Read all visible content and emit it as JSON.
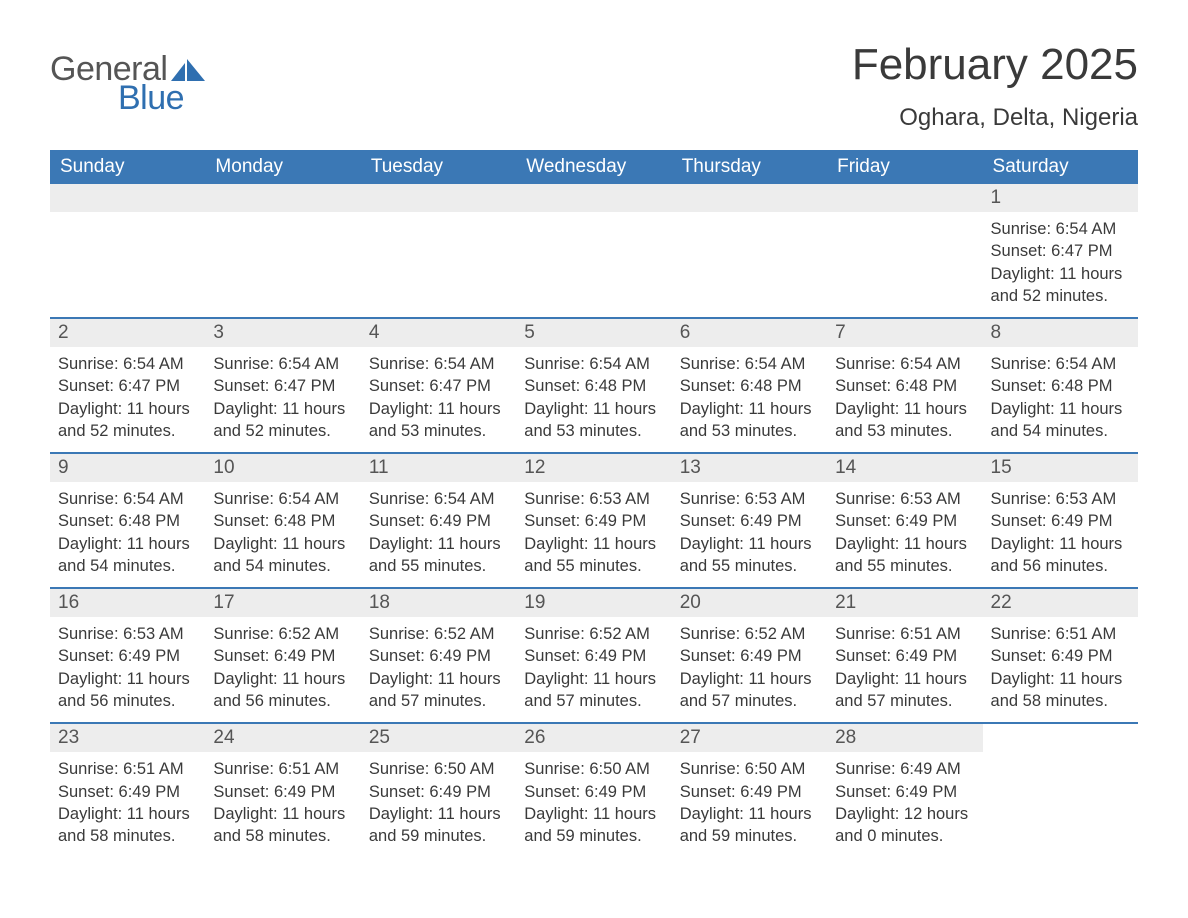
{
  "logo": {
    "text1": "General",
    "text2": "Blue",
    "accent_color": "#2f6fb0"
  },
  "title": "February 2025",
  "location": "Oghara, Delta, Nigeria",
  "colors": {
    "header_bg": "#3b78b5",
    "header_text": "#ffffff",
    "daynum_bg": "#ededed",
    "week_border": "#3b78b5",
    "body_text": "#3a3a3a",
    "background": "#ffffff"
  },
  "fonts": {
    "title_size": 44,
    "location_size": 24,
    "dayhead_size": 19,
    "body_size": 16.5
  },
  "layout": {
    "columns": 7,
    "rows": 5,
    "first_weekday": "Sunday",
    "month_start_col": 6
  },
  "weekdays": [
    "Sunday",
    "Monday",
    "Tuesday",
    "Wednesday",
    "Thursday",
    "Friday",
    "Saturday"
  ],
  "labels": {
    "sunrise": "Sunrise: ",
    "sunset": "Sunset: ",
    "daylight": "Daylight: "
  },
  "days": [
    {
      "n": 1,
      "sunrise": "6:54 AM",
      "sunset": "6:47 PM",
      "daylight": "11 hours and 52 minutes."
    },
    {
      "n": 2,
      "sunrise": "6:54 AM",
      "sunset": "6:47 PM",
      "daylight": "11 hours and 52 minutes."
    },
    {
      "n": 3,
      "sunrise": "6:54 AM",
      "sunset": "6:47 PM",
      "daylight": "11 hours and 52 minutes."
    },
    {
      "n": 4,
      "sunrise": "6:54 AM",
      "sunset": "6:47 PM",
      "daylight": "11 hours and 53 minutes."
    },
    {
      "n": 5,
      "sunrise": "6:54 AM",
      "sunset": "6:48 PM",
      "daylight": "11 hours and 53 minutes."
    },
    {
      "n": 6,
      "sunrise": "6:54 AM",
      "sunset": "6:48 PM",
      "daylight": "11 hours and 53 minutes."
    },
    {
      "n": 7,
      "sunrise": "6:54 AM",
      "sunset": "6:48 PM",
      "daylight": "11 hours and 53 minutes."
    },
    {
      "n": 8,
      "sunrise": "6:54 AM",
      "sunset": "6:48 PM",
      "daylight": "11 hours and 54 minutes."
    },
    {
      "n": 9,
      "sunrise": "6:54 AM",
      "sunset": "6:48 PM",
      "daylight": "11 hours and 54 minutes."
    },
    {
      "n": 10,
      "sunrise": "6:54 AM",
      "sunset": "6:48 PM",
      "daylight": "11 hours and 54 minutes."
    },
    {
      "n": 11,
      "sunrise": "6:54 AM",
      "sunset": "6:49 PM",
      "daylight": "11 hours and 55 minutes."
    },
    {
      "n": 12,
      "sunrise": "6:53 AM",
      "sunset": "6:49 PM",
      "daylight": "11 hours and 55 minutes."
    },
    {
      "n": 13,
      "sunrise": "6:53 AM",
      "sunset": "6:49 PM",
      "daylight": "11 hours and 55 minutes."
    },
    {
      "n": 14,
      "sunrise": "6:53 AM",
      "sunset": "6:49 PM",
      "daylight": "11 hours and 55 minutes."
    },
    {
      "n": 15,
      "sunrise": "6:53 AM",
      "sunset": "6:49 PM",
      "daylight": "11 hours and 56 minutes."
    },
    {
      "n": 16,
      "sunrise": "6:53 AM",
      "sunset": "6:49 PM",
      "daylight": "11 hours and 56 minutes."
    },
    {
      "n": 17,
      "sunrise": "6:52 AM",
      "sunset": "6:49 PM",
      "daylight": "11 hours and 56 minutes."
    },
    {
      "n": 18,
      "sunrise": "6:52 AM",
      "sunset": "6:49 PM",
      "daylight": "11 hours and 57 minutes."
    },
    {
      "n": 19,
      "sunrise": "6:52 AM",
      "sunset": "6:49 PM",
      "daylight": "11 hours and 57 minutes."
    },
    {
      "n": 20,
      "sunrise": "6:52 AM",
      "sunset": "6:49 PM",
      "daylight": "11 hours and 57 minutes."
    },
    {
      "n": 21,
      "sunrise": "6:51 AM",
      "sunset": "6:49 PM",
      "daylight": "11 hours and 57 minutes."
    },
    {
      "n": 22,
      "sunrise": "6:51 AM",
      "sunset": "6:49 PM",
      "daylight": "11 hours and 58 minutes."
    },
    {
      "n": 23,
      "sunrise": "6:51 AM",
      "sunset": "6:49 PM",
      "daylight": "11 hours and 58 minutes."
    },
    {
      "n": 24,
      "sunrise": "6:51 AM",
      "sunset": "6:49 PM",
      "daylight": "11 hours and 58 minutes."
    },
    {
      "n": 25,
      "sunrise": "6:50 AM",
      "sunset": "6:49 PM",
      "daylight": "11 hours and 59 minutes."
    },
    {
      "n": 26,
      "sunrise": "6:50 AM",
      "sunset": "6:49 PM",
      "daylight": "11 hours and 59 minutes."
    },
    {
      "n": 27,
      "sunrise": "6:50 AM",
      "sunset": "6:49 PM",
      "daylight": "11 hours and 59 minutes."
    },
    {
      "n": 28,
      "sunrise": "6:49 AM",
      "sunset": "6:49 PM",
      "daylight": "12 hours and 0 minutes."
    }
  ]
}
